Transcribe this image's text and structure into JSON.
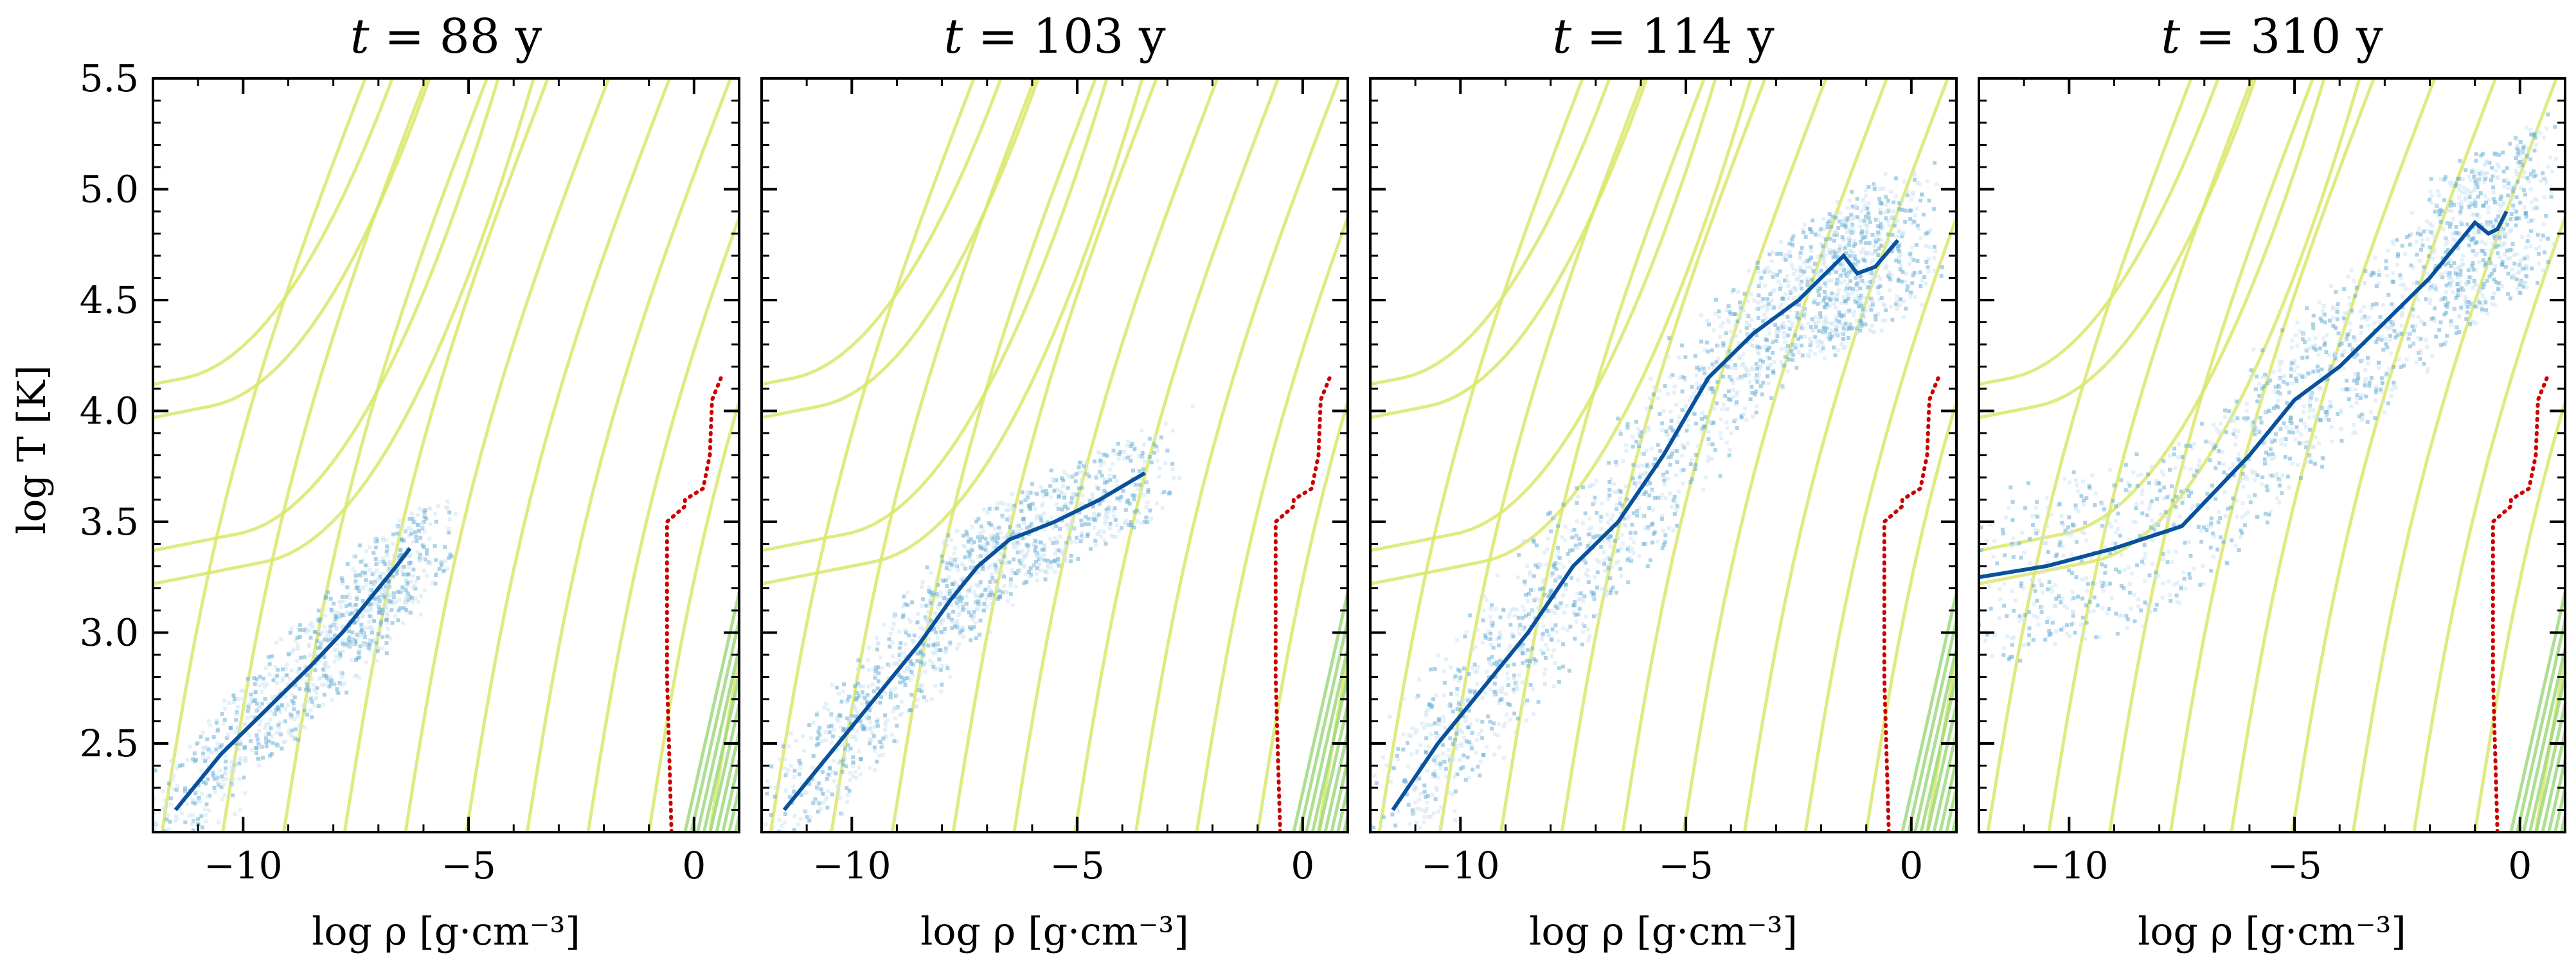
{
  "chart_data": {
    "type": "line",
    "figure_description_colors": {
      "isotherm_line": "#d9e86a",
      "isotherm_line_dense": "#9fd97f",
      "threshold_line": "#cc0000",
      "density_low": "#cfe3f3",
      "density_mid": "#6aaed6",
      "density_high": "#08519c",
      "track_green": "#5aa05a"
    },
    "shared_axes": {
      "xlabel": "log ρ [g·cm⁻³]",
      "ylabel": "log T [K]",
      "xlim": [
        -12,
        1
      ],
      "ylim": [
        2.1,
        5.5
      ],
      "xticks": [
        -10,
        -5,
        0
      ],
      "xtick_labels": [
        "−10",
        "−5",
        "0"
      ],
      "yticks": [
        2.5,
        3.0,
        3.5,
        4.0,
        4.5,
        5.0,
        5.5
      ],
      "ytick_labels": [
        "2.5",
        "3.0",
        "3.5",
        "4.0",
        "4.5",
        "5.0",
        "5.5"
      ]
    },
    "red_dotted_line": {
      "name": "threshold",
      "x": [
        -0.5,
        -0.6,
        -0.6,
        -0.2,
        -0.2,
        0.2,
        0.35,
        0.4,
        0.5,
        0.6
      ],
      "y": [
        2.1,
        2.8,
        3.5,
        3.57,
        3.6,
        3.65,
        3.8,
        4.05,
        4.1,
        4.15
      ]
    },
    "panels": [
      {
        "title": "t = 88 y",
        "title_var": "t",
        "title_rest": " = 88 y",
        "ridge": {
          "x": [
            -11.5,
            -10.5,
            -9.5,
            -8.5,
            -7.8,
            -7.2,
            -6.6,
            -6.3
          ],
          "y": [
            2.2,
            2.45,
            2.65,
            2.85,
            3.0,
            3.15,
            3.3,
            3.38
          ]
        },
        "spread": 0.2
      },
      {
        "title": "t = 103 y",
        "title_var": "t",
        "title_rest": " = 103 y",
        "ridge": {
          "x": [
            -11.5,
            -10.5,
            -9.5,
            -8.5,
            -7.8,
            -7.2,
            -6.5,
            -5.5,
            -4.5,
            -3.5
          ],
          "y": [
            2.2,
            2.45,
            2.7,
            2.95,
            3.15,
            3.3,
            3.42,
            3.5,
            3.6,
            3.72
          ]
        },
        "spread": 0.22
      },
      {
        "title": "t = 114 y",
        "title_var": "t",
        "title_rest": " = 114 y",
        "ridge": {
          "x": [
            -11.5,
            -10.5,
            -9.5,
            -8.5,
            -7.5,
            -6.5,
            -5.5,
            -4.5,
            -3.5,
            -2.5,
            -2.0,
            -1.5,
            -1.2,
            -0.8,
            -0.3
          ],
          "y": [
            2.2,
            2.5,
            2.75,
            3.0,
            3.3,
            3.5,
            3.8,
            4.15,
            4.35,
            4.5,
            4.6,
            4.7,
            4.62,
            4.65,
            4.77
          ]
        },
        "spread": 0.3
      },
      {
        "title": "t = 310 y",
        "title_var": "t",
        "title_rest": " = 310 y",
        "ridge": {
          "x": [
            -12.0,
            -10.5,
            -9.0,
            -7.5,
            -6.0,
            -5.0,
            -4.0,
            -3.0,
            -2.0,
            -1.0,
            -0.7,
            -0.5,
            -0.3
          ],
          "y": [
            3.25,
            3.3,
            3.38,
            3.48,
            3.8,
            4.05,
            4.2,
            4.4,
            4.6,
            4.85,
            4.8,
            4.82,
            4.9
          ]
        },
        "spread": 0.35
      }
    ]
  }
}
